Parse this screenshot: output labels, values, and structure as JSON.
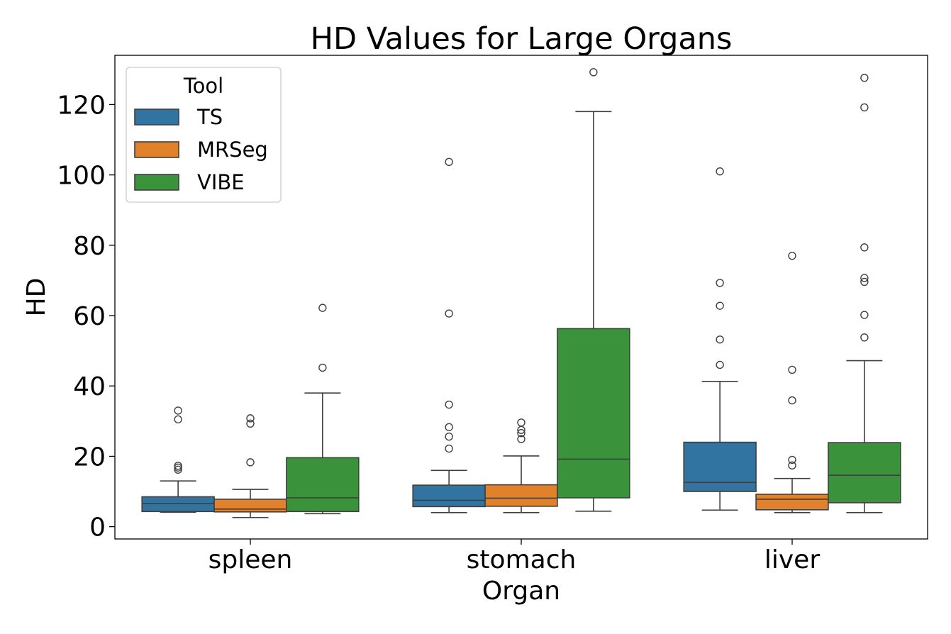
{
  "chart_data": {
    "type": "box",
    "title": "HD Values for Large Organs",
    "xlabel": "Organ",
    "ylabel": "HD",
    "categories": [
      "spleen",
      "stomach",
      "liver"
    ],
    "ylim": [
      -3.5,
      134
    ],
    "yticks": [
      0,
      20,
      40,
      60,
      80,
      100,
      120
    ],
    "legend": {
      "title": "Tool",
      "position": "top-left"
    },
    "series": [
      {
        "name": "TS",
        "color": "#3274a1",
        "boxes": [
          {
            "min": 4.1,
            "q1": 4.3,
            "median": 6.6,
            "q3": 8.5,
            "max": 13.0,
            "outliers": [
              16.2,
              16.8,
              17.3,
              30.5,
              33.0
            ]
          },
          {
            "min": 4.0,
            "q1": 5.7,
            "median": 7.5,
            "q3": 11.8,
            "max": 16.0,
            "outliers": [
              22.2,
              25.6,
              28.3,
              34.7,
              60.6,
              103.7
            ]
          },
          {
            "min": 4.7,
            "q1": 10.0,
            "median": 12.6,
            "q3": 24.0,
            "max": 41.3,
            "outliers": [
              46.0,
              53.2,
              62.8,
              69.3,
              101.0
            ]
          }
        ]
      },
      {
        "name": "MRSeg",
        "color": "#e1812c",
        "boxes": [
          {
            "min": 2.6,
            "q1": 4.2,
            "median": 5.0,
            "q3": 7.8,
            "max": 10.6,
            "outliers": [
              18.3,
              29.3,
              30.8
            ]
          },
          {
            "min": 4.0,
            "q1": 5.8,
            "median": 8.1,
            "q3": 11.9,
            "max": 20.1,
            "outliers": [
              24.9,
              26.6,
              27.5,
              29.6
            ]
          },
          {
            "min": 4.0,
            "q1": 4.8,
            "median": 7.8,
            "q3": 9.2,
            "max": 13.7,
            "outliers": [
              17.4,
              19.0,
              35.9,
              44.6,
              77.0
            ]
          }
        ]
      },
      {
        "name": "VIBE",
        "color": "#3a923a",
        "boxes": [
          {
            "min": 3.7,
            "q1": 4.3,
            "median": 8.2,
            "q3": 19.6,
            "max": 38.0,
            "outliers": [
              45.2,
              62.2
            ]
          },
          {
            "min": 4.4,
            "q1": 8.2,
            "median": 19.2,
            "q3": 56.3,
            "max": 118.0,
            "outliers": [
              129.2
            ]
          },
          {
            "min": 4.0,
            "q1": 6.8,
            "median": 14.6,
            "q3": 23.9,
            "max": 47.2,
            "outliers": [
              53.8,
              60.2,
              69.6,
              70.7,
              79.4,
              119.2,
              127.6
            ]
          }
        ]
      }
    ]
  }
}
